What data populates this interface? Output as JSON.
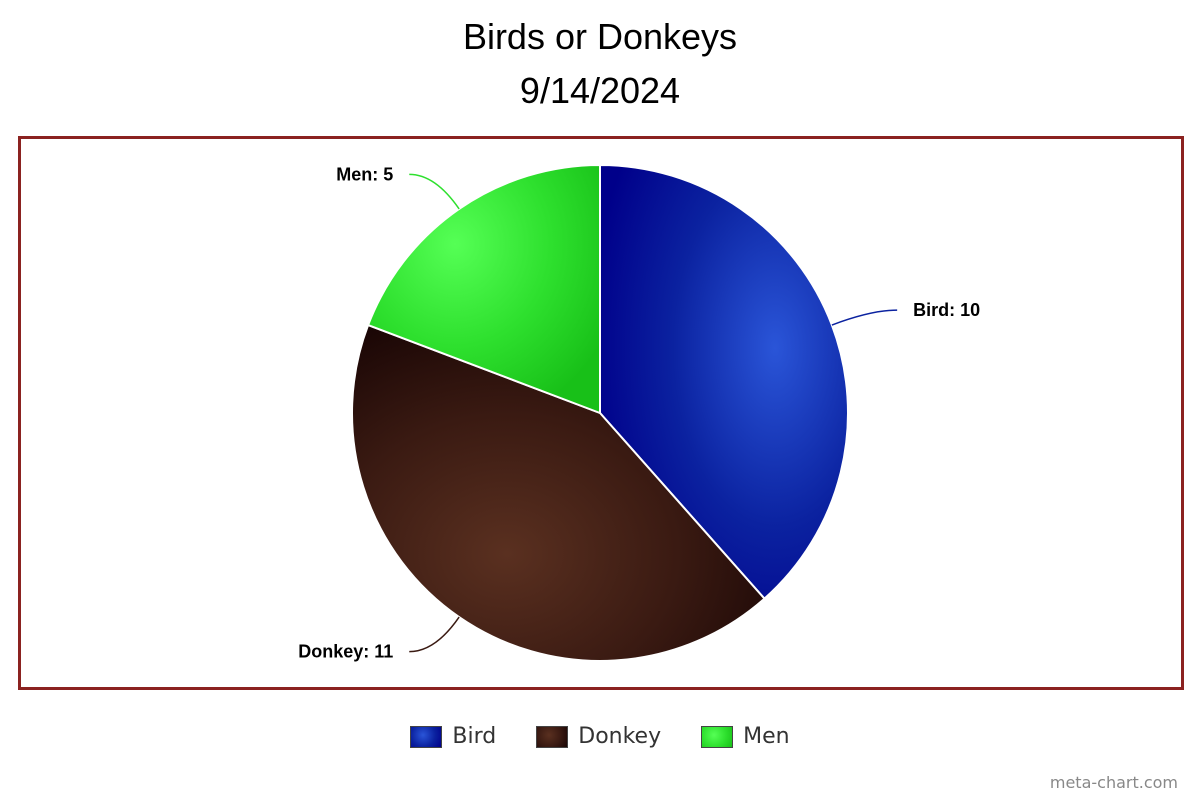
{
  "chart_data": {
    "type": "pie",
    "title_lines": [
      "Birds or Donkeys",
      "9/14/2024"
    ],
    "categories": [
      "Bird",
      "Donkey",
      "Men"
    ],
    "values": [
      10,
      11,
      5
    ],
    "data_labels": [
      "Bird: 10",
      "Donkey: 11",
      "Men: 5"
    ],
    "colors": [
      "#0b22a0",
      "#3a1a12",
      "#2ee02e"
    ],
    "legend_position": "bottom-center"
  },
  "credit": "meta-chart.com"
}
